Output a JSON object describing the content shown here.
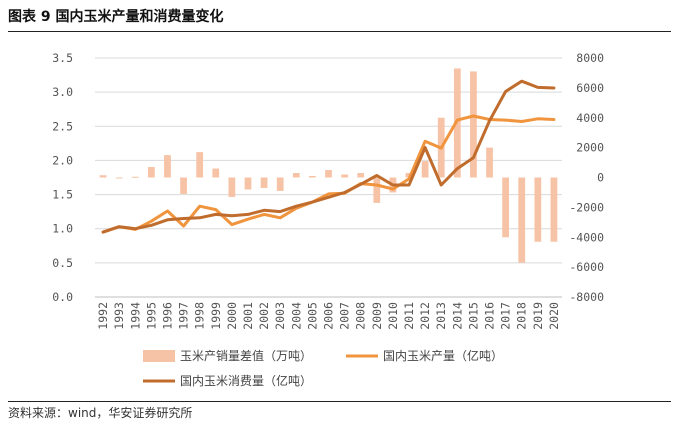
{
  "figure": {
    "title": "图表 9  国内玉米产量和消费量变化",
    "source": "资料来源：wind，华安证券研究所"
  },
  "chart_data": {
    "type": "bar+line",
    "categories": [
      "1992",
      "1993",
      "1994",
      "1995",
      "1996",
      "1997",
      "1998",
      "1999",
      "2000",
      "2001",
      "2002",
      "2003",
      "2004",
      "2005",
      "2006",
      "2007",
      "2008",
      "2009",
      "2010",
      "2011",
      "2012",
      "2013",
      "2014",
      "2015",
      "2016",
      "2017",
      "2018",
      "2019",
      "2020"
    ],
    "left_axis": {
      "ticks": [
        "0.0",
        "0.5",
        "1.0",
        "1.5",
        "2.0",
        "2.5",
        "3.0",
        "3.5"
      ],
      "ylim": [
        0,
        3.5
      ]
    },
    "right_axis": {
      "ticks": [
        "-8000",
        "-6000",
        "-4000",
        "-2000",
        "0",
        "2000",
        "4000",
        "6000",
        "8000"
      ],
      "ylim": [
        -8000,
        8000
      ]
    },
    "series": [
      {
        "name": "玉米产销量差值（万吨）",
        "type": "bar",
        "axis": "right",
        "color": "#f7c3a6",
        "values": [
          150,
          0,
          50,
          700,
          1500,
          -1100,
          1700,
          600,
          -1300,
          -800,
          -700,
          -900,
          300,
          100,
          500,
          200,
          300,
          -1700,
          -1000,
          300,
          1100,
          4000,
          7300,
          7100,
          2000,
          -4000,
          -5700,
          -4300,
          -4300
        ]
      },
      {
        "name": "国内玉米产量（亿吨）",
        "type": "line",
        "axis": "left",
        "color": "#f0943d",
        "values": [
          0.95,
          1.03,
          0.99,
          1.11,
          1.26,
          1.04,
          1.33,
          1.28,
          1.06,
          1.14,
          1.21,
          1.16,
          1.3,
          1.39,
          1.51,
          1.52,
          1.66,
          1.64,
          1.58,
          1.73,
          2.28,
          2.18,
          2.59,
          2.65,
          2.6,
          2.59,
          2.57,
          2.61,
          2.6
        ]
      },
      {
        "name": "国内玉米消费量（亿吨）",
        "type": "line",
        "axis": "left",
        "color": "#c06c2c",
        "values": [
          0.95,
          1.03,
          1.0,
          1.05,
          1.13,
          1.15,
          1.16,
          1.21,
          1.19,
          1.21,
          1.27,
          1.25,
          1.33,
          1.39,
          1.46,
          1.53,
          1.65,
          1.78,
          1.64,
          1.64,
          2.19,
          1.64,
          1.88,
          2.04,
          2.58,
          3.01,
          3.16,
          3.07,
          3.06
        ]
      }
    ],
    "legend": {
      "placement": "bottom"
    }
  }
}
